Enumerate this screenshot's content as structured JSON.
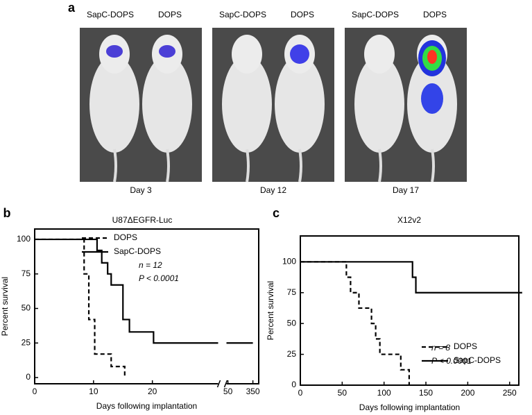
{
  "panel_a": {
    "label": "a",
    "groups": [
      {
        "left": "SapC-DOPS",
        "right": "DOPS",
        "day": "Day 3"
      },
      {
        "left": "SapC-DOPS",
        "right": "DOPS",
        "day": "Day 12"
      },
      {
        "left": "SapC-DOPS",
        "right": "DOPS",
        "day": "Day 17"
      }
    ]
  },
  "chart_data": [
    {
      "type": "line",
      "panel": "b",
      "title": "U87ΔEGFR-Luc",
      "x_label": "Days following implantation",
      "y_label": "Percent survival",
      "xlim": [
        0,
        370
      ],
      "x_break": [
        31,
        45
      ],
      "xticks": [
        0,
        10,
        20,
        50,
        350
      ],
      "ylim": [
        -4.5,
        107.5
      ],
      "yticks": [
        0,
        25,
        50,
        75,
        100
      ],
      "step": true,
      "annotations": [
        "n = 12",
        "P < 0.0001"
      ],
      "series": [
        {
          "name": "DOPS",
          "dash": true,
          "x": [
            0,
            8.4,
            9.2,
            10.2,
            13,
            15.3
          ],
          "values": [
            100,
            75,
            42,
            17,
            8,
            0
          ]
        },
        {
          "name": "SapC-DOPS",
          "dash": false,
          "x": [
            0,
            10.6,
            11.4,
            12.4,
            13,
            15,
            16.1,
            20.2,
            350
          ],
          "values": [
            100,
            92,
            83,
            75,
            67,
            42,
            33,
            25,
            25
          ]
        }
      ]
    },
    {
      "type": "line",
      "panel": "c",
      "title": "X12v2",
      "x_label": "Days following implantation",
      "y_label": "Percent survival",
      "xlim": [
        0,
        261
      ],
      "xticks": [
        0,
        50,
        100,
        150,
        200,
        250
      ],
      "ylim": [
        0,
        121
      ],
      "yticks": [
        0,
        25,
        50,
        75,
        100
      ],
      "step": true,
      "annotations": [
        "n = 8",
        "P < 0.0001"
      ],
      "series": [
        {
          "name": "DOPS",
          "dash": true,
          "x": [
            0,
            55,
            60,
            70,
            85,
            90,
            95,
            120,
            130
          ],
          "values": [
            100,
            87.5,
            75,
            62.5,
            50,
            37.5,
            25,
            12.5,
            0
          ]
        },
        {
          "name": "SapC-DOPS",
          "dash": false,
          "x": [
            0,
            134,
            138,
            265
          ],
          "values": [
            100,
            87.5,
            75,
            75
          ]
        }
      ]
    }
  ]
}
